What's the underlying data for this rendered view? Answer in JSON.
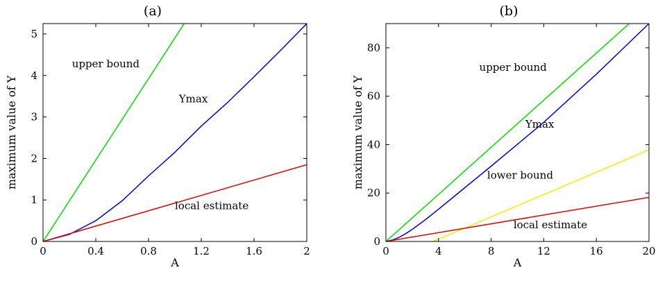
{
  "chart_data": [
    {
      "type": "line",
      "title": "(a)",
      "xlabel": "A",
      "ylabel": "maximum value of Y",
      "xlim": [
        0,
        2
      ],
      "ylim": [
        0,
        5.25
      ],
      "xticks": [
        0,
        0.4,
        0.8,
        1.2,
        1.6,
        2
      ],
      "xtick_labels": [
        "0",
        "0.4",
        "0.8",
        "1.2",
        "1.6",
        "2"
      ],
      "yticks": [
        0,
        1,
        2,
        3,
        4,
        5
      ],
      "ytick_labels": [
        "0",
        "1",
        "2",
        "3",
        "4",
        "5"
      ],
      "grid": false,
      "legend": "none",
      "series": [
        {
          "label": "upper bound",
          "color": "#00e000",
          "x": [
            0,
            1.07
          ],
          "y": [
            0,
            5.25
          ]
        },
        {
          "label": "Ymax",
          "color": "#0000e0",
          "x": [
            0,
            0.2,
            0.4,
            0.6,
            0.8,
            1.0,
            1.2,
            1.4,
            1.6,
            1.8,
            2.0
          ],
          "y": [
            0,
            0.17,
            0.5,
            0.98,
            1.58,
            2.15,
            2.78,
            3.35,
            3.97,
            4.6,
            5.25
          ]
        },
        {
          "label": "local estimate",
          "color": "#e00000",
          "x": [
            0,
            2
          ],
          "y": [
            0,
            1.85
          ]
        }
      ],
      "annotations": [
        {
          "text": "upper bound",
          "x": 0.22,
          "y": 4.2
        },
        {
          "text": "Ymax",
          "x": 1.03,
          "y": 3.35
        },
        {
          "text": "local estimate",
          "x": 1.0,
          "y": 0.78
        }
      ]
    },
    {
      "type": "line",
      "title": "(b)",
      "xlabel": "A",
      "ylabel": "maximum value of Y",
      "xlim": [
        0,
        20
      ],
      "ylim": [
        0,
        90
      ],
      "xticks": [
        0,
        4,
        8,
        12,
        16,
        20
      ],
      "xtick_labels": [
        "0",
        "4",
        "8",
        "12",
        "16",
        "20"
      ],
      "yticks": [
        0,
        20,
        40,
        60,
        80
      ],
      "ytick_labels": [
        "0",
        "20",
        "40",
        "60",
        "80"
      ],
      "grid": false,
      "legend": "none",
      "series": [
        {
          "label": "upper bound",
          "color": "#00e000",
          "x": [
            0,
            18.5
          ],
          "y": [
            0,
            90
          ]
        },
        {
          "label": "Ymax",
          "color": "#0000e0",
          "x": [
            0,
            0.5,
            1,
            1.5,
            2,
            3,
            4,
            6,
            8,
            12,
            16,
            20
          ],
          "y": [
            0,
            0.6,
            1.7,
            3.2,
            5.0,
            9.0,
            13.3,
            22.2,
            31.1,
            49.2,
            69.1,
            90
          ]
        },
        {
          "label": "lower bound",
          "color": "#f0f000",
          "x": [
            3.6,
            20
          ],
          "y": [
            0,
            37.8
          ]
        },
        {
          "label": "local estimate",
          "color": "#e00000",
          "x": [
            0,
            20
          ],
          "y": [
            0,
            18.2
          ]
        }
      ],
      "annotations": [
        {
          "text": "upper bound",
          "x": 7.1,
          "y": 70.5
        },
        {
          "text": "Ymax",
          "x": 10.6,
          "y": 47.0
        },
        {
          "text": "lower bound",
          "x": 7.7,
          "y": 25.9
        },
        {
          "text": "local estimate",
          "x": 9.7,
          "y": 5.5
        }
      ]
    }
  ]
}
